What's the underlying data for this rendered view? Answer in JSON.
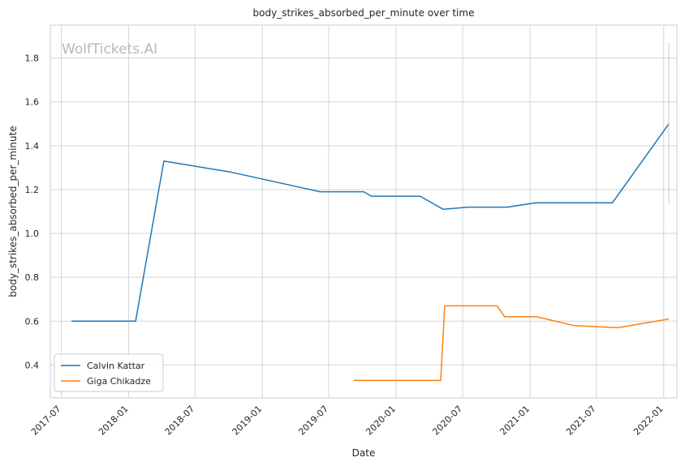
{
  "chart_data": {
    "type": "line",
    "title": "body_strikes_absorbed_per_minute over time",
    "xlabel": "Date",
    "ylabel": "body_strikes_absorbed_per_minute",
    "watermark": "WolfTickets.AI",
    "xlim": [
      "2017-06-01",
      "2022-02-06"
    ],
    "ylim": [
      0.25,
      1.95
    ],
    "x_ticks": [
      "2017-07",
      "2018-01",
      "2018-07",
      "2019-01",
      "2019-07",
      "2020-01",
      "2020-07",
      "2021-01",
      "2021-07",
      "2022-01"
    ],
    "y_ticks": [
      "0.4",
      "0.6",
      "0.8",
      "1.0",
      "1.2",
      "1.4",
      "1.6",
      "1.8"
    ],
    "grid": true,
    "legend_position": "lower-left",
    "series": [
      {
        "name": "Calvin Kattar",
        "color": "#1f77b4",
        "points": [
          {
            "x": "2017-07-29",
            "y": 0.6
          },
          {
            "x": "2018-01-20",
            "y": 0.6
          },
          {
            "x": "2018-04-07",
            "y": 1.33
          },
          {
            "x": "2018-10-06",
            "y": 1.28
          },
          {
            "x": "2019-06-08",
            "y": 1.19
          },
          {
            "x": "2019-10-05",
            "y": 1.19
          },
          {
            "x": "2019-10-26",
            "y": 1.17
          },
          {
            "x": "2020-03-07",
            "y": 1.17
          },
          {
            "x": "2020-05-09",
            "y": 1.11
          },
          {
            "x": "2020-07-15",
            "y": 1.12
          },
          {
            "x": "2020-10-31",
            "y": 1.12
          },
          {
            "x": "2021-01-16",
            "y": 1.14
          },
          {
            "x": "2021-08-14",
            "y": 1.14
          },
          {
            "x": "2022-01-15",
            "y": 1.5
          }
        ]
      },
      {
        "name": "Giga Chikadze",
        "color": "#ff7f0e",
        "points": [
          {
            "x": "2019-09-07",
            "y": 0.33
          },
          {
            "x": "2020-05-02",
            "y": 0.33
          },
          {
            "x": "2020-05-13",
            "y": 0.67
          },
          {
            "x": "2020-10-03",
            "y": 0.67
          },
          {
            "x": "2020-10-24",
            "y": 0.62
          },
          {
            "x": "2021-01-20",
            "y": 0.62
          },
          {
            "x": "2021-05-01",
            "y": 0.58
          },
          {
            "x": "2021-08-28",
            "y": 0.57
          },
          {
            "x": "2022-01-15",
            "y": 0.61
          }
        ]
      }
    ],
    "error_bar": {
      "x": "2022-01-15",
      "y_low": 1.13,
      "y_high": 1.87
    }
  }
}
